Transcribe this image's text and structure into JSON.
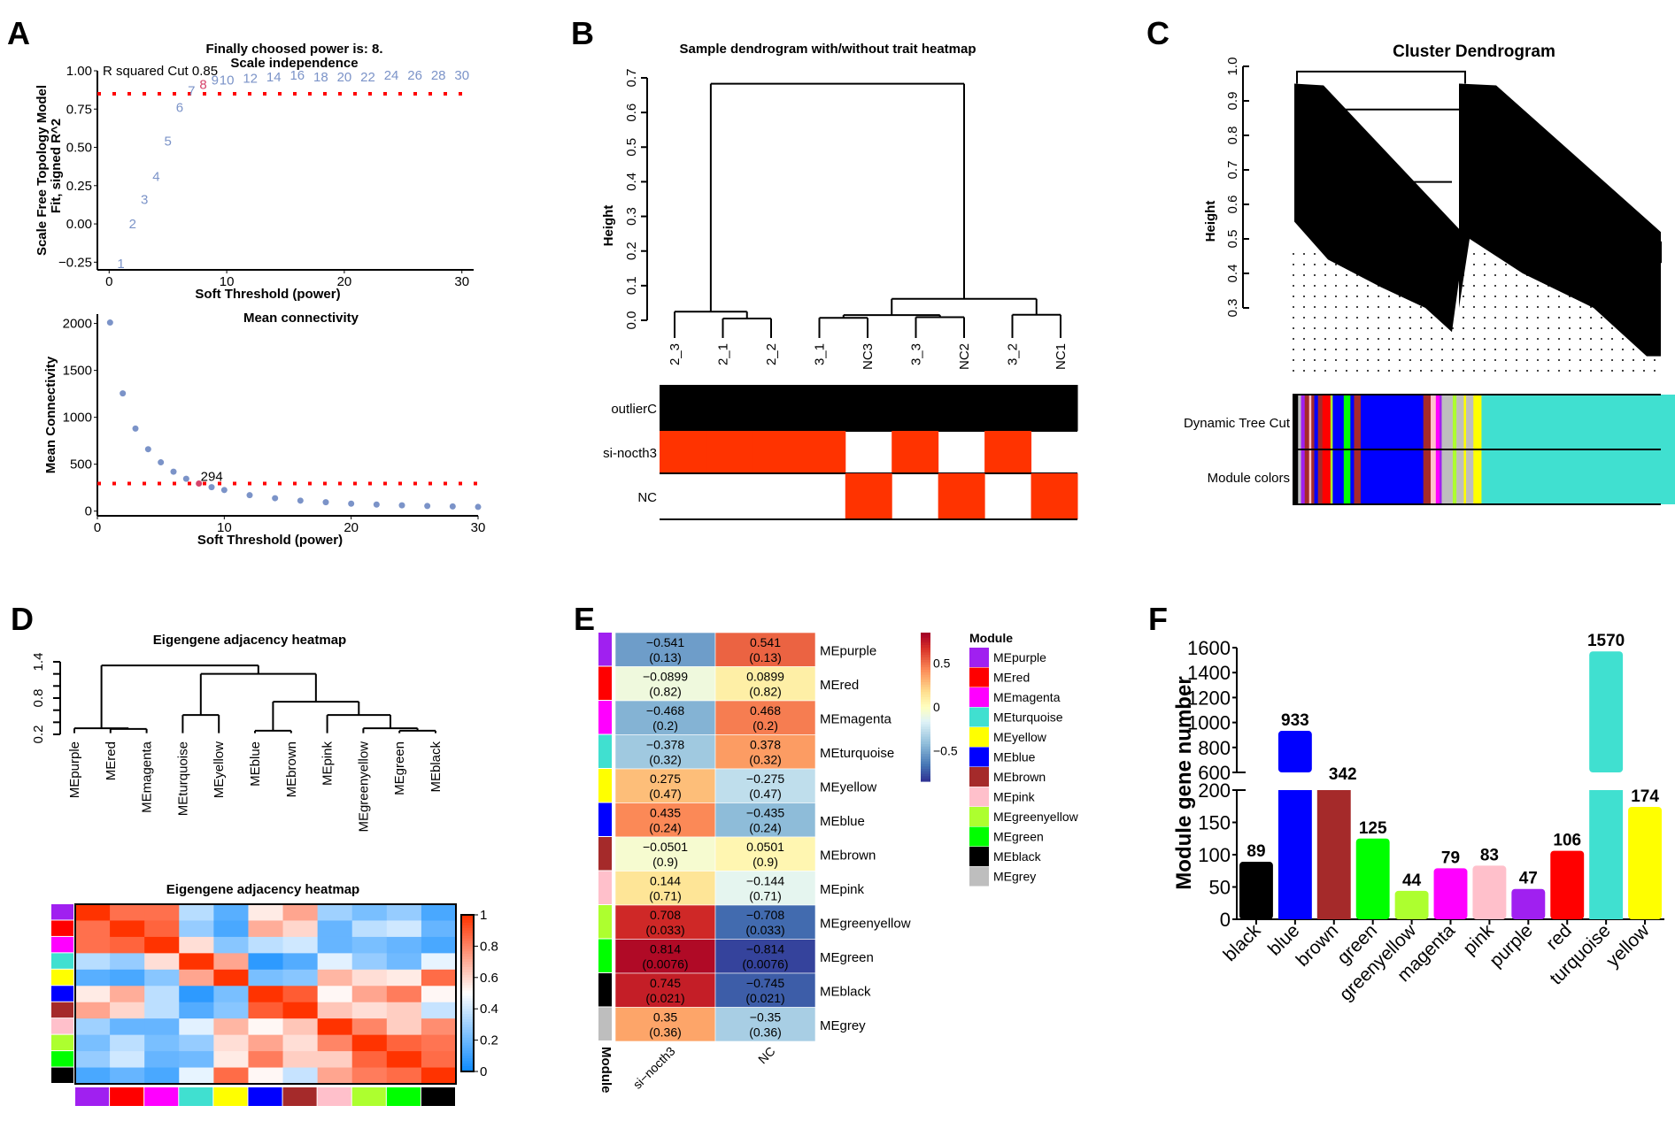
{
  "panels": {
    "A": "A",
    "B": "B",
    "C": "C",
    "D": "D",
    "E": "E",
    "F": "F"
  },
  "chart_data": [
    {
      "id": "A1",
      "type": "scatter",
      "title": "Finally choosed power is: 8.",
      "subtitle": "Scale independence",
      "xlabel": "Soft Threshold (power)",
      "ylabel": [
        "Scale Free Topology Model",
        "Fit, signed R^2"
      ],
      "xlim": [
        -1,
        31
      ],
      "ylim": [
        -0.3,
        1.0
      ],
      "xticks": [
        0,
        10,
        20,
        30
      ],
      "yticks": [
        -0.25,
        0.0,
        0.25,
        0.5,
        0.75,
        1.0
      ],
      "ytick_labels": [
        "−0.25",
        "0.00",
        "0.25",
        "0.50",
        "0.75",
        "1.00"
      ],
      "annotation": "R squared Cut 0.85",
      "cutoff": 0.85,
      "chosen_power": 8,
      "point_color": "#7B93C8",
      "chosen_color": "#D6436A",
      "cut_color": "#FF0000",
      "x": [
        1,
        2,
        3,
        4,
        5,
        6,
        7,
        8,
        9,
        10,
        12,
        14,
        16,
        18,
        20,
        22,
        24,
        26,
        28,
        30
      ],
      "y": [
        -0.26,
        0.0,
        0.16,
        0.31,
        0.54,
        0.76,
        0.87,
        0.91,
        0.94,
        0.94,
        0.95,
        0.96,
        0.97,
        0.96,
        0.96,
        0.96,
        0.97,
        0.97,
        0.97,
        0.97
      ]
    },
    {
      "id": "A2",
      "type": "scatter",
      "title": "Mean connectivity",
      "xlabel": "Soft Threshold (power)",
      "ylabel": "Mean Connectivity",
      "xlim": [
        0,
        30
      ],
      "ylim": [
        -50,
        2100
      ],
      "xticks": [
        0,
        10,
        20,
        30
      ],
      "yticks": [
        0,
        500,
        1000,
        1500,
        2000
      ],
      "annotation": "294",
      "cutoff": 294,
      "point_color": "#7B93C8",
      "chosen_color": "#D6436A",
      "cut_color": "#FF0000",
      "x": [
        1,
        2,
        3,
        4,
        5,
        6,
        7,
        8,
        9,
        10,
        12,
        14,
        16,
        18,
        20,
        22,
        24,
        26,
        28,
        30
      ],
      "y": [
        2010,
        1255,
        880,
        660,
        520,
        420,
        345,
        294,
        255,
        225,
        170,
        138,
        112,
        95,
        80,
        70,
        62,
        55,
        50,
        45
      ]
    },
    {
      "id": "B",
      "type": "dendrogram",
      "title": "Sample dendrogram with/without trait heatmap",
      "ylabel": "Height",
      "ylim": [
        0,
        0.7
      ],
      "yticks": [
        0.0,
        0.1,
        0.2,
        0.3,
        0.4,
        0.5,
        0.6,
        0.7
      ],
      "leaves": [
        "2_3",
        "2_1",
        "2_2",
        "3_1",
        "NC3",
        "3_3",
        "NC2",
        "3_2",
        "NC1"
      ],
      "merges": [
        {
          "a": "L1",
          "b": "L2",
          "h": 0.005
        },
        {
          "a": "L0",
          "b": "M0",
          "h": 0.025
        },
        {
          "a": "L3",
          "b": "L4",
          "h": 0.007
        },
        {
          "a": "L5",
          "b": "L6",
          "h": 0.009
        },
        {
          "a": "M2",
          "b": "M3",
          "h": 0.015
        },
        {
          "a": "L7",
          "b": "L8",
          "h": 0.016
        },
        {
          "a": "M4",
          "b": "M5",
          "h": 0.062
        },
        {
          "a": "M1",
          "b": "M6",
          "h": 0.683
        }
      ],
      "traits": [
        {
          "name": "outlierC",
          "values": [
            1,
            1,
            1,
            1,
            1,
            1,
            1,
            1,
            1
          ],
          "on_color": "#000000"
        },
        {
          "name": "si-nocth3",
          "values": [
            1,
            1,
            1,
            1,
            0,
            1,
            0,
            1,
            0
          ],
          "on_color": "#FF3300"
        },
        {
          "name": "NC",
          "values": [
            0,
            0,
            0,
            0,
            1,
            0,
            1,
            0,
            1
          ],
          "on_color": "#FF3300"
        }
      ]
    },
    {
      "id": "C",
      "type": "dendrogram",
      "title": "Cluster Dendrogram",
      "ylabel": "Height",
      "ylim": [
        0.3,
        1.0
      ],
      "yticks": [
        0.3,
        0.4,
        0.5,
        0.6,
        0.7,
        0.8,
        0.9,
        1.0
      ],
      "row_labels": [
        "Dynamic Tree Cut",
        "Module colors"
      ],
      "color_segments": [
        {
          "color": "#000000",
          "w": 0.015
        },
        {
          "color": "#BEBEBE",
          "w": 0.008
        },
        {
          "color": "#A020F0",
          "w": 0.01
        },
        {
          "color": "#A52A2A",
          "w": 0.012
        },
        {
          "color": "#FFC0CB",
          "w": 0.006
        },
        {
          "color": "#A52A2A",
          "w": 0.008
        },
        {
          "color": "#0000FF",
          "w": 0.01
        },
        {
          "color": "#A52A2A",
          "w": 0.012
        },
        {
          "color": "#FF0000",
          "w": 0.022
        },
        {
          "color": "#ADFF2F",
          "w": 0.006
        },
        {
          "color": "#0000FF",
          "w": 0.03
        },
        {
          "color": "#00FF00",
          "w": 0.018
        },
        {
          "color": "#0000FF",
          "w": 0.01
        },
        {
          "color": "#A52A2A",
          "w": 0.018
        },
        {
          "color": "#0000FF",
          "w": 0.03
        },
        {
          "color": "#0000FF",
          "w": 0.14
        },
        {
          "color": "#A52A2A",
          "w": 0.02
        },
        {
          "color": "#FFC0CB",
          "w": 0.014
        },
        {
          "color": "#FF00FF",
          "w": 0.01
        },
        {
          "color": "#A020F0",
          "w": 0.006
        },
        {
          "color": "#BEBEBE",
          "w": 0.03
        },
        {
          "color": "#ADFF2F",
          "w": 0.01
        },
        {
          "color": "#BEBEBE",
          "w": 0.02
        },
        {
          "color": "#FFFF00",
          "w": 0.006
        },
        {
          "color": "#BEBEBE",
          "w": 0.02
        },
        {
          "color": "#FFFF00",
          "w": 0.022
        },
        {
          "color": "#40E0D0",
          "w": 0.538
        }
      ]
    },
    {
      "id": "D1",
      "type": "dendrogram",
      "title": "Eigengene adjacency heatmap",
      "ylim": [
        0.2,
        1.4
      ],
      "yticks": [
        0.2,
        0.8,
        1.4
      ],
      "ytick_minor": [
        0.2,
        0.4,
        0.6,
        0.8,
        1.0,
        1.2,
        1.4
      ],
      "leaves": [
        "MEpurple",
        "MEred",
        "MEmagenta",
        "MEturquoise",
        "MEyellow",
        "MEblue",
        "MEbrown",
        "MEpink",
        "MEgreenyellow",
        "MEgreen",
        "MEblack"
      ],
      "merges": [
        {
          "a": "L1",
          "b": "L2",
          "h": 0.29
        },
        {
          "a": "L0",
          "b": "M0",
          "h": 0.3
        },
        {
          "a": "L3",
          "b": "L4",
          "h": 0.52
        },
        {
          "a": "L5",
          "b": "L6",
          "h": 0.26
        },
        {
          "a": "L9",
          "b": "L10",
          "h": 0.26
        },
        {
          "a": "L8",
          "b": "M4",
          "h": 0.3
        },
        {
          "a": "L7",
          "b": "M5",
          "h": 0.52
        },
        {
          "a": "M3",
          "b": "M6",
          "h": 0.74
        },
        {
          "a": "M2",
          "b": "M7",
          "h": 1.2
        },
        {
          "a": "M1",
          "b": "M8",
          "h": 1.34
        }
      ]
    },
    {
      "id": "D2",
      "type": "heatmap",
      "title": "Eigengene adjacency heatmap",
      "colorbar_ticks": [
        "0",
        "0.2",
        "0.4",
        "0.6",
        "0.8",
        "1"
      ],
      "modules": [
        "purple",
        "red",
        "magenta",
        "turquoise",
        "yellow",
        "blue",
        "brown",
        "pink",
        "greenyellow",
        "green",
        "black"
      ],
      "module_colors": [
        "#A020F0",
        "#FF0000",
        "#FF00FF",
        "#40E0D0",
        "#FFFF00",
        "#0000FF",
        "#A52A2A",
        "#FFC0CB",
        "#ADFF2F",
        "#00FF00",
        "#000000"
      ],
      "values": [
        [
          1.0,
          0.85,
          0.85,
          0.35,
          0.15,
          0.55,
          0.72,
          0.3,
          0.22,
          0.28,
          0.12
        ],
        [
          0.85,
          1.0,
          0.88,
          0.28,
          0.12,
          0.7,
          0.6,
          0.18,
          0.36,
          0.4,
          0.18
        ],
        [
          0.85,
          0.88,
          1.0,
          0.58,
          0.25,
          0.36,
          0.4,
          0.18,
          0.22,
          0.18,
          0.12
        ],
        [
          0.35,
          0.28,
          0.58,
          1.0,
          0.72,
          0.06,
          0.14,
          0.44,
          0.28,
          0.2,
          0.45
        ],
        [
          0.15,
          0.12,
          0.25,
          0.72,
          1.0,
          0.22,
          0.25,
          0.68,
          0.58,
          0.55,
          0.86
        ],
        [
          0.55,
          0.7,
          0.36,
          0.06,
          0.22,
          1.0,
          0.9,
          0.52,
          0.72,
          0.82,
          0.52
        ],
        [
          0.72,
          0.6,
          0.36,
          0.14,
          0.25,
          0.9,
          1.0,
          0.64,
          0.58,
          0.62,
          0.38
        ],
        [
          0.3,
          0.18,
          0.18,
          0.44,
          0.68,
          0.52,
          0.64,
          1.0,
          0.8,
          0.62,
          0.78
        ],
        [
          0.22,
          0.36,
          0.22,
          0.28,
          0.58,
          0.72,
          0.58,
          0.8,
          1.0,
          0.88,
          0.84
        ],
        [
          0.28,
          0.4,
          0.18,
          0.2,
          0.55,
          0.82,
          0.62,
          0.62,
          0.88,
          1.0,
          0.86
        ],
        [
          0.12,
          0.18,
          0.12,
          0.45,
          0.86,
          0.52,
          0.38,
          0.72,
          0.82,
          0.86,
          1.0
        ]
      ]
    },
    {
      "id": "E",
      "type": "heatmap",
      "columns": [
        "si−nocth3",
        "NC"
      ],
      "row_label_title": "Module",
      "legend_title": "Module",
      "colorbar_ticks": [
        {
          "v": 0.5,
          "t": "0.5"
        },
        {
          "v": 0,
          "t": "0"
        },
        {
          "v": -0.5,
          "t": "−0.5"
        }
      ],
      "colorbar_range": [
        -0.85,
        0.85
      ],
      "rows": [
        {
          "name": "MEpurple",
          "color": "#A020F0",
          "r": [
            -0.541,
            0.541
          ],
          "p": [
            "(0.13)",
            "(0.13)"
          ],
          "t": [
            "−0.541",
            "0.541"
          ]
        },
        {
          "name": "MEred",
          "color": "#FF0000",
          "r": [
            -0.0899,
            0.0899
          ],
          "p": [
            "(0.82)",
            "(0.82)"
          ],
          "t": [
            "−0.0899",
            "0.0899"
          ]
        },
        {
          "name": "MEmagenta",
          "color": "#FF00FF",
          "r": [
            -0.468,
            0.468
          ],
          "p": [
            "(0.2)",
            "(0.2)"
          ],
          "t": [
            "−0.468",
            "0.468"
          ]
        },
        {
          "name": "MEturquoise",
          "color": "#40E0D0",
          "r": [
            -0.378,
            0.378
          ],
          "p": [
            "(0.32)",
            "(0.32)"
          ],
          "t": [
            "−0.378",
            "0.378"
          ]
        },
        {
          "name": "MEyellow",
          "color": "#FFFF00",
          "r": [
            0.275,
            -0.275
          ],
          "p": [
            "(0.47)",
            "(0.47)"
          ],
          "t": [
            "0.275",
            "−0.275"
          ]
        },
        {
          "name": "MEblue",
          "color": "#0000FF",
          "r": [
            0.435,
            -0.435
          ],
          "p": [
            "(0.24)",
            "(0.24)"
          ],
          "t": [
            "0.435",
            "−0.435"
          ]
        },
        {
          "name": "MEbrown",
          "color": "#A52A2A",
          "r": [
            -0.0501,
            0.0501
          ],
          "p": [
            "(0.9)",
            "(0.9)"
          ],
          "t": [
            "−0.0501",
            "0.0501"
          ]
        },
        {
          "name": "MEpink",
          "color": "#FFC0CB",
          "r": [
            0.144,
            -0.144
          ],
          "p": [
            "(0.71)",
            "(0.71)"
          ],
          "t": [
            "0.144",
            "−0.144"
          ]
        },
        {
          "name": "MEgreenyellow",
          "color": "#ADFF2F",
          "r": [
            0.708,
            -0.708
          ],
          "p": [
            "(0.033)",
            "(0.033)"
          ],
          "t": [
            "0.708",
            "−0.708"
          ]
        },
        {
          "name": "MEgreen",
          "color": "#00FF00",
          "r": [
            0.814,
            -0.814
          ],
          "p": [
            "(0.0076)",
            "(0.0076)"
          ],
          "t": [
            "0.814",
            "−0.814"
          ]
        },
        {
          "name": "MEblack",
          "color": "#000000",
          "r": [
            0.745,
            -0.745
          ],
          "p": [
            "(0.021)",
            "(0.021)"
          ],
          "t": [
            "0.745",
            "−0.745"
          ]
        },
        {
          "name": "MEgrey",
          "color": "#BEBEBE",
          "r": [
            0.35,
            -0.35
          ],
          "p": [
            "(0.36)",
            "(0.36)"
          ],
          "t": [
            "0.35",
            "−0.35"
          ]
        }
      ]
    },
    {
      "id": "F",
      "type": "bar",
      "ylabel": "Module gene number",
      "categories": [
        "black",
        "blue",
        "brown",
        "green",
        "greenyellow",
        "magenta",
        "pink",
        "purple",
        "red",
        "turquoise",
        "yellow"
      ],
      "values": [
        89,
        933,
        342,
        125,
        44,
        79,
        83,
        47,
        106,
        1570,
        174
      ],
      "colors": [
        "#000000",
        "#0000FF",
        "#A52A2A",
        "#00FF00",
        "#ADFF2F",
        "#FF00FF",
        "#FFC0CB",
        "#A020F0",
        "#FF0000",
        "#40E0D0",
        "#FFFF00"
      ],
      "axis_break": [
        200,
        600
      ],
      "lower_ylim": [
        0,
        200
      ],
      "upper_ylim": [
        600,
        1600
      ],
      "lower_ticks": [
        0,
        50,
        100,
        150,
        200
      ],
      "upper_ticks": [
        600,
        800,
        1000,
        1200,
        1400,
        1600
      ]
    }
  ]
}
